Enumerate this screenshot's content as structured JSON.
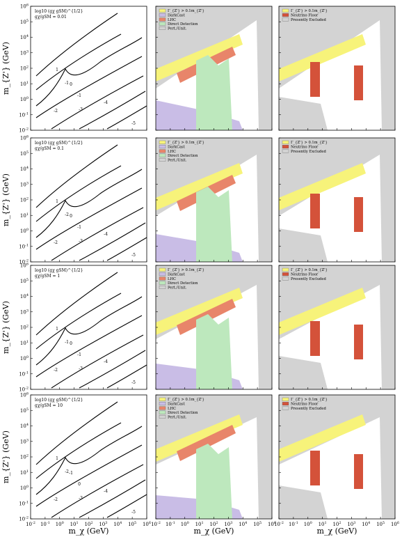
{
  "figure": {
    "y_axis_label": "m_{Z'} (GeV)",
    "x_axis_label": "m_χ (GeV)",
    "x_ticks": [
      "10^{-2}",
      "10^{-1}",
      "10^{0}",
      "10^{1}",
      "10^{2}",
      "10^{3}",
      "10^{4}",
      "10^{5}",
      "10^{6}"
    ],
    "y_ticks": [
      "10^{-2}",
      "10^{-1}",
      "10^{0}",
      "10^{1}",
      "10^{2}",
      "10^{3}",
      "10^{4}",
      "10^{5}",
      "10^{6}"
    ]
  },
  "colors": {
    "grey": "#d3d3d3",
    "yellow": "#f7f37a",
    "purple": "#c9bde6",
    "orange": "#e8856a",
    "green": "#bde8bd",
    "red": "#d4523a",
    "lightblue": "#bcd7ee"
  },
  "chart_data": [
    {
      "type": "contour",
      "row": 1,
      "panel": "coupling contours",
      "annotation_line1": "log10 (gχ gSM)^{1/2}",
      "annotation_line2": "gχ/gSM = 0.01",
      "contour_labels": [
        "1",
        "0",
        "-1",
        "-1",
        "-2",
        "-3",
        "-4",
        "-5"
      ],
      "xlim": [
        0.01,
        1000000
      ],
      "ylim": [
        0.01,
        1000000
      ],
      "xscale": "log",
      "yscale": "log"
    },
    {
      "type": "area",
      "row": 1,
      "panel": "exclusion regions",
      "legend": [
        "Γ_{Z'} > 0.1m_{Z'}",
        "DarkCast",
        "LHC",
        "Direct Detection",
        "Pert./Unit."
      ],
      "xlim": [
        0.01,
        1000000
      ],
      "ylim": [
        0.01,
        1000000
      ],
      "xscale": "log",
      "yscale": "log"
    },
    {
      "type": "area",
      "row": 1,
      "panel": "neutrino floor",
      "legend": [
        "Γ_{Z'} > 0.1m_{Z'}",
        "Neutrino Floor",
        "Presently Excluded"
      ],
      "xlim": [
        0.01,
        1000000
      ],
      "ylim": [
        0.01,
        1000000
      ],
      "xscale": "log",
      "yscale": "log"
    },
    {
      "type": "contour",
      "row": 2,
      "panel": "coupling contours",
      "annotation_line1": "log10 (gχ gSM)^{1/2}",
      "annotation_line2": "gχ/gSM = 0.1",
      "contour_labels": [
        "1",
        "0",
        "-1",
        "-2",
        "-2",
        "-3",
        "-4",
        "-5"
      ],
      "xlim": [
        0.01,
        1000000
      ],
      "ylim": [
        0.01,
        1000000
      ],
      "xscale": "log",
      "yscale": "log"
    },
    {
      "type": "area",
      "row": 2,
      "panel": "exclusion regions",
      "legend": [
        "Γ_{Z'} > 0.1m_{Z'}",
        "DarkCast",
        "LHC",
        "Direct Detection",
        "Pert./Unit."
      ],
      "xlim": [
        0.01,
        1000000
      ],
      "ylim": [
        0.01,
        1000000
      ],
      "xscale": "log",
      "yscale": "log"
    },
    {
      "type": "area",
      "row": 2,
      "panel": "neutrino floor",
      "legend": [
        "Γ_{Z'} > 0.1m_{Z'}",
        "Neutrino Floor",
        "Presently Excluded"
      ],
      "xlim": [
        0.01,
        1000000
      ],
      "ylim": [
        0.01,
        1000000
      ],
      "xscale": "log",
      "yscale": "log"
    },
    {
      "type": "contour",
      "row": 3,
      "panel": "coupling contours",
      "annotation_line1": "log10 (gχ gSM)^{1/2}",
      "annotation_line2": "gχ/gSM = 1",
      "contour_labels": [
        "1",
        "0",
        "-1",
        "-1",
        "-2",
        "-3",
        "-4",
        "-5"
      ],
      "xlim": [
        0.01,
        1000000
      ],
      "ylim": [
        0.01,
        1000000
      ],
      "xscale": "log",
      "yscale": "log"
    },
    {
      "type": "area",
      "row": 3,
      "panel": "exclusion regions",
      "legend": [
        "Γ_{Z'} > 0.1m_{Z'}",
        "DarkCast",
        "LHC",
        "Direct Detection",
        "Pert./Unit."
      ],
      "xlim": [
        0.01,
        1000000
      ],
      "ylim": [
        0.01,
        1000000
      ],
      "xscale": "log",
      "yscale": "log"
    },
    {
      "type": "area",
      "row": 3,
      "panel": "neutrino floor",
      "legend": [
        "Γ_{Z'} > 0.1m_{Z'}",
        "Neutrino Floor",
        "Presently Excluded"
      ],
      "xlim": [
        0.01,
        1000000
      ],
      "ylim": [
        0.01,
        1000000
      ],
      "xscale": "log",
      "yscale": "log"
    },
    {
      "type": "contour",
      "row": 4,
      "panel": "coupling contours",
      "annotation_line1": "log10 (gχ gSM)^{1/2}",
      "annotation_line2": "gχ/gSM = 10",
      "contour_labels": [
        "1",
        "-1",
        "0",
        "-2",
        "-2",
        "-3",
        "-4",
        "-5"
      ],
      "xlim": [
        0.01,
        1000000
      ],
      "ylim": [
        0.01,
        1000000
      ],
      "xscale": "log",
      "yscale": "log"
    },
    {
      "type": "area",
      "row": 4,
      "panel": "exclusion regions",
      "legend": [
        "Γ_{Z'} > 0.1m_{Z'}",
        "DarkCast",
        "LHC",
        "Direct Detection",
        "Pert./Unit."
      ],
      "xlim": [
        0.01,
        1000000
      ],
      "ylim": [
        0.01,
        1000000
      ],
      "xscale": "log",
      "yscale": "log"
    },
    {
      "type": "area",
      "row": 4,
      "panel": "neutrino floor",
      "legend": [
        "Γ_{Z'} > 0.1m_{Z'}",
        "Neutrino Floor",
        "Presently Excluded"
      ],
      "xlim": [
        0.01,
        1000000
      ],
      "ylim": [
        0.01,
        1000000
      ],
      "xscale": "log",
      "yscale": "log"
    }
  ]
}
